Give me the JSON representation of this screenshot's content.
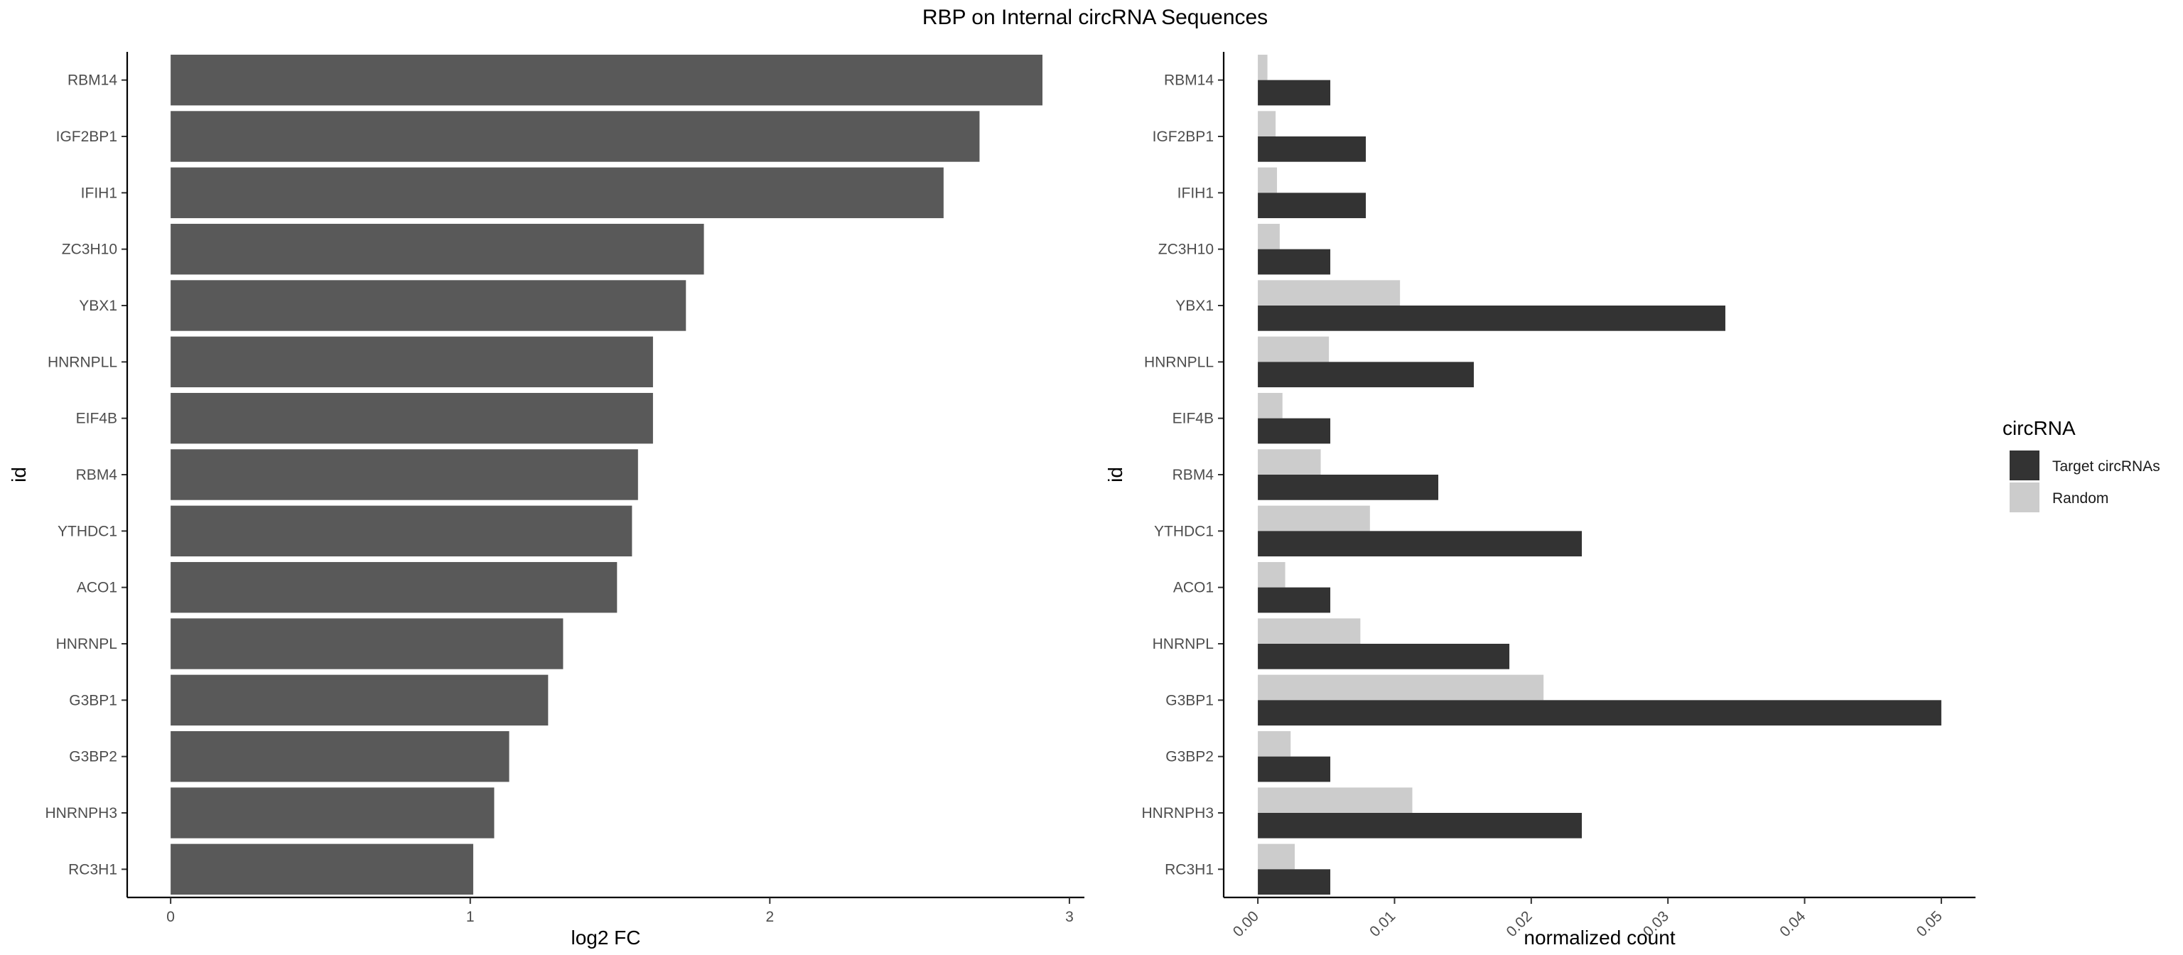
{
  "title": "RBP on Internal circRNA Sequences",
  "chart_data": [
    {
      "type": "bar",
      "orientation": "horizontal",
      "categories": [
        "RBM14",
        "IGF2BP1",
        "IFIH1",
        "ZC3H10",
        "YBX1",
        "HNRNPLL",
        "EIF4B",
        "RBM4",
        "YTHDC1",
        "ACO1",
        "HNRNPL",
        "G3BP1",
        "G3BP2",
        "HNRNPH3",
        "RC3H1"
      ],
      "values": [
        2.91,
        2.7,
        2.58,
        1.78,
        1.72,
        1.61,
        1.61,
        1.56,
        1.54,
        1.49,
        1.31,
        1.26,
        1.13,
        1.08,
        1.01
      ],
      "xlabel": "log2 FC",
      "ylabel": "id",
      "xlim": [
        -0.145,
        3.05
      ],
      "xticks": [
        0,
        1,
        2,
        3
      ],
      "bar_color": "#595959",
      "grid": false
    },
    {
      "type": "bar",
      "orientation": "horizontal",
      "grouped": true,
      "categories": [
        "RBM14",
        "IGF2BP1",
        "IFIH1",
        "ZC3H10",
        "YBX1",
        "HNRNPLL",
        "EIF4B",
        "RBM4",
        "YTHDC1",
        "ACO1",
        "HNRNPL",
        "G3BP1",
        "G3BP2",
        "HNRNPH3",
        "RC3H1"
      ],
      "series": [
        {
          "name": "Target circRNAs",
          "color": "#333333",
          "values": [
            0.0053,
            0.0079,
            0.0079,
            0.0053,
            0.0342,
            0.0158,
            0.0053,
            0.0132,
            0.0237,
            0.0053,
            0.0184,
            0.05,
            0.0053,
            0.0237,
            0.0053
          ]
        },
        {
          "name": "Random",
          "color": "#cccccc",
          "values": [
            0.0007,
            0.0013,
            0.0014,
            0.0016,
            0.0104,
            0.0052,
            0.0018,
            0.0046,
            0.0082,
            0.002,
            0.0075,
            0.0209,
            0.0024,
            0.0113,
            0.0027
          ]
        }
      ],
      "xlabel": "normalized count",
      "ylabel": "id",
      "xlim": [
        -0.0025,
        0.0525
      ],
      "xticks": [
        "0.00",
        "0.01",
        "0.02",
        "0.03",
        "0.04",
        "0.05"
      ],
      "legend": {
        "title": "circRNA",
        "position": "right"
      },
      "grid": false
    }
  ]
}
